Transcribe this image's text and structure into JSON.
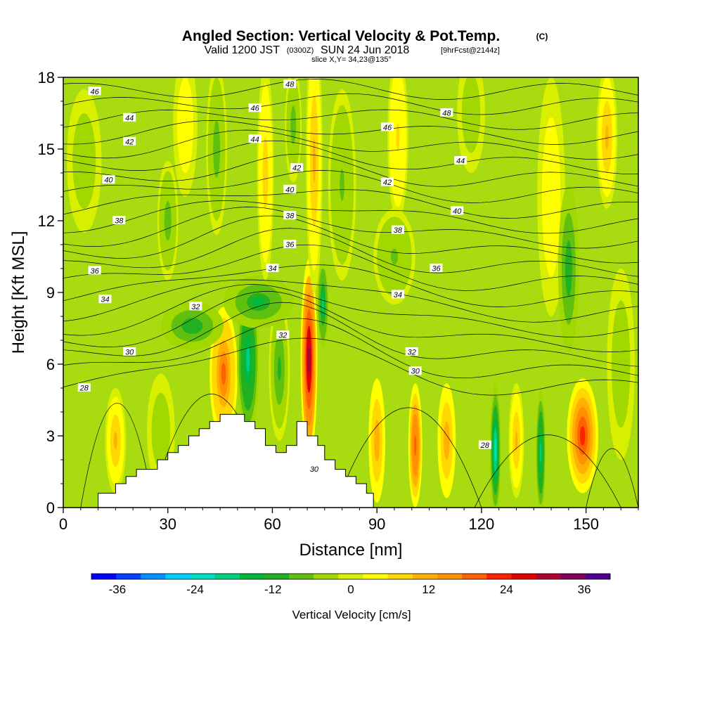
{
  "chart_data": {
    "type": "heatmap",
    "title": "Angled Section: Vertical Velocity & Pot.Temp.",
    "title_unit": "(C)",
    "subtitle": {
      "valid_prefix": "Valid 1200 JST",
      "utc_time": "(0300Z)",
      "date": "SUN 24 Jun 2018",
      "forecast": "[9hrFcst@2144z]"
    },
    "slice_label": "slice X,Y= 34,23@135°",
    "xlabel": "Distance [nm]",
    "ylabel": "Height [Kft MSL]",
    "xlim": [
      0,
      165
    ],
    "ylim": [
      0,
      18
    ],
    "x_ticks": [
      "0",
      "30",
      "60",
      "90",
      "120",
      "150"
    ],
    "y_ticks": [
      "0",
      "3",
      "6",
      "9",
      "12",
      "15",
      "18"
    ],
    "grid": false,
    "colorbar": {
      "label": "Vertical Velocity [cm/s]",
      "ticks": [
        "-36",
        "-24",
        "-12",
        "0",
        "12",
        "24",
        "36"
      ],
      "range": [
        -40,
        40
      ],
      "colors": [
        "#0000ff",
        "#0040ff",
        "#0090ff",
        "#00d0ff",
        "#00e0c0",
        "#00d080",
        "#00b840",
        "#20b020",
        "#60c010",
        "#a0d800",
        "#d8f000",
        "#ffff00",
        "#ffd800",
        "#ffb000",
        "#ff9000",
        "#ff6000",
        "#ff2000",
        "#e00000",
        "#b00030",
        "#800060",
        "#500090"
      ]
    },
    "terrain_kft": [
      [
        0,
        0
      ],
      [
        10,
        0
      ],
      [
        10,
        0.6
      ],
      [
        15,
        0.6
      ],
      [
        15,
        1.0
      ],
      [
        18,
        1.0
      ],
      [
        18,
        1.3
      ],
      [
        21,
        1.3
      ],
      [
        21,
        1.6
      ],
      [
        27,
        1.6
      ],
      [
        27,
        2.0
      ],
      [
        30,
        2.0
      ],
      [
        30,
        2.3
      ],
      [
        33,
        2.3
      ],
      [
        33,
        2.6
      ],
      [
        36,
        2.6
      ],
      [
        36,
        3.0
      ],
      [
        39,
        3.0
      ],
      [
        39,
        3.3
      ],
      [
        42,
        3.3
      ],
      [
        42,
        3.6
      ],
      [
        45,
        3.6
      ],
      [
        45,
        3.9
      ],
      [
        52,
        3.9
      ],
      [
        52,
        3.6
      ],
      [
        55,
        3.6
      ],
      [
        55,
        3.3
      ],
      [
        58,
        3.3
      ],
      [
        58,
        2.6
      ],
      [
        61,
        2.6
      ],
      [
        61,
        2.3
      ],
      [
        64,
        2.3
      ],
      [
        64,
        2.6
      ],
      [
        67,
        2.6
      ],
      [
        67,
        3.6
      ],
      [
        70,
        3.6
      ],
      [
        70,
        3.0
      ],
      [
        73,
        3.0
      ],
      [
        73,
        2.6
      ],
      [
        75,
        2.6
      ],
      [
        75,
        2.0
      ],
      [
        78,
        2.0
      ],
      [
        78,
        1.6
      ],
      [
        81,
        1.6
      ],
      [
        81,
        1.3
      ],
      [
        84,
        1.3
      ],
      [
        84,
        1.0
      ],
      [
        87,
        1.0
      ],
      [
        87,
        0.6
      ],
      [
        89,
        0.6
      ],
      [
        89,
        0
      ],
      [
        165,
        0
      ]
    ],
    "w_features": [
      {
        "x": 70.5,
        "y": 6.2,
        "rx": 2.4,
        "ry": 4.2,
        "w": 30
      },
      {
        "x": 46,
        "y": 5.6,
        "rx": 4.0,
        "ry": 2.8,
        "w": 18
      },
      {
        "x": 53,
        "y": 6.2,
        "rx": 3.2,
        "ry": 3.2,
        "w": -20
      },
      {
        "x": 62,
        "y": 5.8,
        "rx": 3.0,
        "ry": 3.0,
        "w": -10
      },
      {
        "x": 74.5,
        "y": 8.5,
        "rx": 1.6,
        "ry": 1.8,
        "w": -18
      },
      {
        "x": 56,
        "y": 8.6,
        "rx": 10.0,
        "ry": 1.1,
        "w": -14
      },
      {
        "x": 37,
        "y": 7.6,
        "rx": 9.0,
        "ry": 1.0,
        "w": -12
      },
      {
        "x": 90,
        "y": 2.8,
        "rx": 2.4,
        "ry": 2.6,
        "w": 12
      },
      {
        "x": 101,
        "y": 2.6,
        "rx": 2.0,
        "ry": 2.6,
        "w": 20
      },
      {
        "x": 110,
        "y": 2.8,
        "rx": 2.6,
        "ry": 2.4,
        "w": 12
      },
      {
        "x": 124,
        "y": 2.4,
        "rx": 1.6,
        "ry": 2.8,
        "w": -24
      },
      {
        "x": 137,
        "y": 2.3,
        "rx": 1.4,
        "ry": 2.6,
        "w": -20
      },
      {
        "x": 130,
        "y": 2.8,
        "rx": 2.2,
        "ry": 2.4,
        "w": 10
      },
      {
        "x": 149,
        "y": 3.0,
        "rx": 4.5,
        "ry": 2.4,
        "w": 22
      },
      {
        "x": 15,
        "y": 2.8,
        "rx": 3.0,
        "ry": 2.2,
        "w": 10
      },
      {
        "x": 28,
        "y": 3.2,
        "rx": 4.0,
        "ry": 2.4,
        "w": -4
      },
      {
        "x": 44,
        "y": 15.0,
        "rx": 3.0,
        "ry": 3.6,
        "w": -8
      },
      {
        "x": 58,
        "y": 14.0,
        "rx": 2.4,
        "ry": 4.5,
        "w": 8
      },
      {
        "x": 66,
        "y": 16.0,
        "rx": 2.4,
        "ry": 2.4,
        "w": -8
      },
      {
        "x": 72,
        "y": 14.5,
        "rx": 2.4,
        "ry": 5.5,
        "w": 10
      },
      {
        "x": 80,
        "y": 13.5,
        "rx": 4.0,
        "ry": 4.0,
        "w": -6
      },
      {
        "x": 96,
        "y": 15.5,
        "rx": 3.0,
        "ry": 3.5,
        "w": 6
      },
      {
        "x": 117,
        "y": 16.5,
        "rx": 4.0,
        "ry": 2.5,
        "w": -4
      },
      {
        "x": 140,
        "y": 13.0,
        "rx": 4.0,
        "ry": 5.0,
        "w": 5
      },
      {
        "x": 145,
        "y": 10.0,
        "rx": 3.0,
        "ry": 3.5,
        "w": -12
      },
      {
        "x": 156,
        "y": 15.5,
        "rx": 3.0,
        "ry": 3.0,
        "w": 10
      },
      {
        "x": 6,
        "y": 14.5,
        "rx": 5.0,
        "ry": 3.0,
        "w": -4
      },
      {
        "x": 35,
        "y": 16.0,
        "rx": 3.5,
        "ry": 3.0,
        "w": 5
      },
      {
        "x": 30,
        "y": 12.0,
        "rx": 3.0,
        "ry": 2.5,
        "w": -8
      },
      {
        "x": 95,
        "y": 10.5,
        "rx": 6.0,
        "ry": 2.0,
        "w": -6
      },
      {
        "x": 160,
        "y": 6.0,
        "rx": 4.0,
        "ry": 4.0,
        "w": -5
      }
    ],
    "theta_levels": [
      "28",
      "29",
      "30",
      "31",
      "32",
      "33",
      "34",
      "35",
      "36",
      "37",
      "38",
      "39",
      "40",
      "41",
      "42",
      "43",
      "44",
      "45",
      "46",
      "47",
      "48"
    ],
    "theta_labels": [
      {
        "text": "46",
        "x": 9,
        "y": 17.4
      },
      {
        "text": "44",
        "x": 19,
        "y": 16.3
      },
      {
        "text": "42",
        "x": 19,
        "y": 15.3
      },
      {
        "text": "40",
        "x": 13,
        "y": 13.7
      },
      {
        "text": "38",
        "x": 16,
        "y": 12.0
      },
      {
        "text": "36",
        "x": 9,
        "y": 9.9
      },
      {
        "text": "34",
        "x": 12,
        "y": 8.7
      },
      {
        "text": "32",
        "x": 38,
        "y": 8.4
      },
      {
        "text": "30",
        "x": 19,
        "y": 6.5
      },
      {
        "text": "28",
        "x": 6,
        "y": 5.0
      },
      {
        "text": "48",
        "x": 65,
        "y": 17.7
      },
      {
        "text": "46",
        "x": 55,
        "y": 16.7
      },
      {
        "text": "44",
        "x": 55,
        "y": 15.4
      },
      {
        "text": "42",
        "x": 67,
        "y": 14.2
      },
      {
        "text": "40",
        "x": 65,
        "y": 13.3
      },
      {
        "text": "38",
        "x": 65,
        "y": 12.2
      },
      {
        "text": "36",
        "x": 65,
        "y": 11.0
      },
      {
        "text": "34",
        "x": 60,
        "y": 10.0
      },
      {
        "text": "32",
        "x": 63,
        "y": 7.2
      },
      {
        "text": "30",
        "x": 72,
        "y": 1.6
      },
      {
        "text": "48",
        "x": 110,
        "y": 16.5
      },
      {
        "text": "46",
        "x": 93,
        "y": 15.9
      },
      {
        "text": "44",
        "x": 114,
        "y": 14.5
      },
      {
        "text": "42",
        "x": 93,
        "y": 13.6
      },
      {
        "text": "40",
        "x": 113,
        "y": 12.4
      },
      {
        "text": "38",
        "x": 96,
        "y": 11.6
      },
      {
        "text": "36",
        "x": 107,
        "y": 10.0
      },
      {
        "text": "34",
        "x": 96,
        "y": 8.9
      },
      {
        "text": "32",
        "x": 100,
        "y": 6.5
      },
      {
        "text": "30",
        "x": 101,
        "y": 5.7
      },
      {
        "text": "28",
        "x": 121,
        "y": 2.6
      }
    ]
  }
}
